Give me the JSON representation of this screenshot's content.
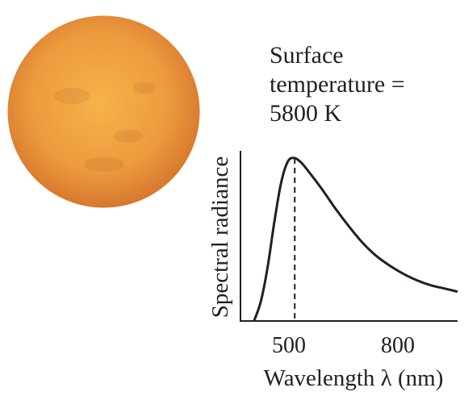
{
  "caption": {
    "line1": "Surface",
    "line2": "temperature =",
    "line3": "5800 K"
  },
  "colors": {
    "sun_center": "#f7b34a",
    "sun_mid": "#ec9b3e",
    "sun_edge": "#d8782e",
    "curve": "#231f20"
  },
  "chart_data": {
    "type": "line",
    "title": "",
    "xlabel": "Wavelength λ (nm)",
    "ylabel": "Spectral radiance",
    "xlim": [
      300,
      1100
    ],
    "x_ticks": [
      500,
      800
    ],
    "y_ticks": [],
    "grid": false,
    "temperature_K": 5800,
    "peak_wavelength_nm": 500,
    "series": [
      {
        "x": [
          350,
          375,
          400,
          425,
          450,
          475,
          500,
          525,
          550,
          600,
          650,
          700,
          750,
          800,
          850,
          900,
          950,
          1000,
          1050,
          1100
        ],
        "values": [
          0.0,
          0.12,
          0.33,
          0.61,
          0.85,
          0.98,
          1.0,
          0.97,
          0.92,
          0.81,
          0.69,
          0.58,
          0.48,
          0.4,
          0.34,
          0.29,
          0.25,
          0.22,
          0.2,
          0.18
        ]
      }
    ],
    "annotations": [
      {
        "type": "dashed-vertical-line",
        "x": 500
      }
    ]
  }
}
